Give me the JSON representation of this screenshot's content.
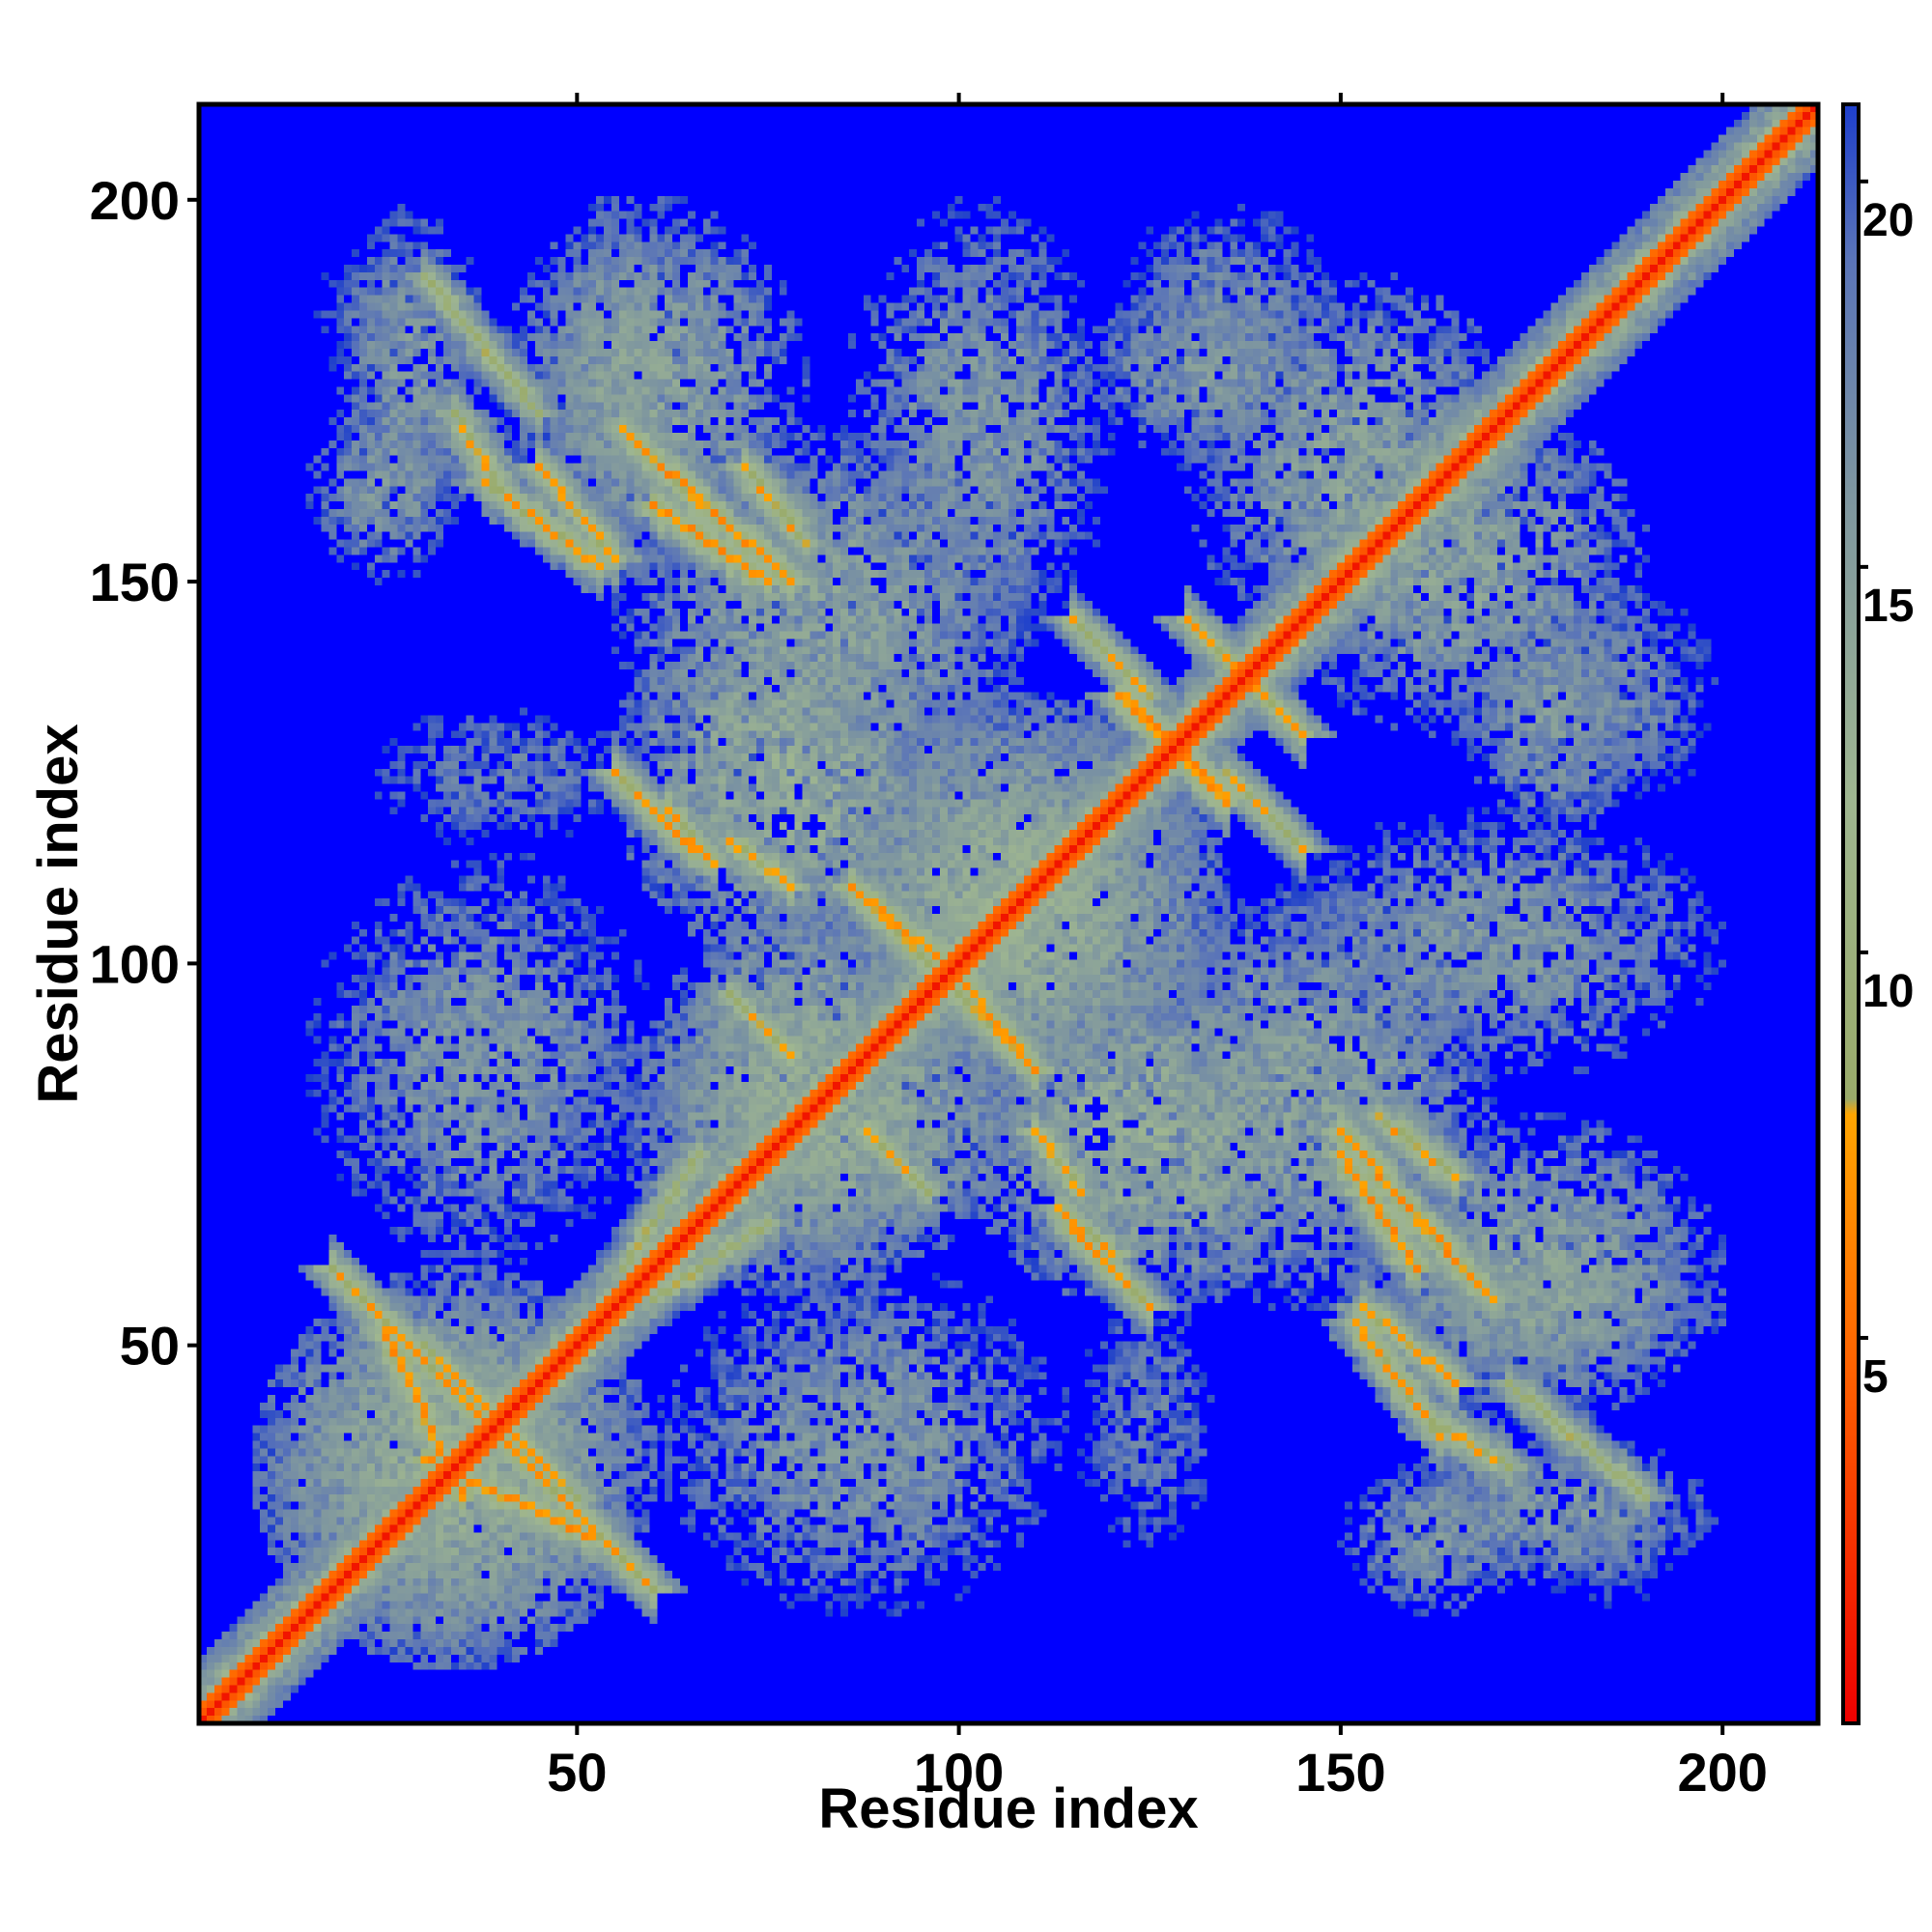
{
  "chart_data": {
    "type": "heatmap",
    "title": "",
    "xlabel": "Residue index",
    "ylabel": "Residue index",
    "n_residues": 212,
    "xlim": [
      1,
      212
    ],
    "ylim": [
      1,
      212
    ],
    "x_ticks": [
      50,
      100,
      150,
      200
    ],
    "y_ticks": [
      50,
      100,
      150,
      200
    ],
    "colorbar": {
      "ticks": [
        5,
        10,
        15,
        20
      ],
      "range": [
        0,
        21
      ],
      "stops": [
        {
          "value": 0,
          "color": "#ee0000"
        },
        {
          "value": 5,
          "color": "#ff6a00"
        },
        {
          "value": 7.9,
          "color": "#ffa500"
        },
        {
          "value": 8.1,
          "color": "#9aab6a"
        },
        {
          "value": 12,
          "color": "#9fb690"
        },
        {
          "value": 16,
          "color": "#7d95a0"
        },
        {
          "value": 19,
          "color": "#5a74b8"
        },
        {
          "value": 21,
          "color": "#1e3fcc"
        }
      ],
      "saturated_color": "#0000ff"
    },
    "value_description": "pairwise residue distance map; values above 21 shown as saturated blue",
    "diagonal_value": 1,
    "contacts": [
      {
        "i": [
          18,
          42
        ],
        "j": [
          36,
          60
        ],
        "direction": "anti",
        "value": 6.5
      },
      {
        "i": [
          30,
          52
        ],
        "j": [
          25,
          35
        ],
        "direction": "anti",
        "value": 6
      },
      {
        "i": [
          36,
          50
        ],
        "j": [
          44,
          30
        ],
        "direction": "parallel",
        "value": 7
      },
      {
        "i": [
          34,
          40
        ],
        "j": [
          162,
          172
        ],
        "direction": "anti",
        "value": 7
      },
      {
        "i": [
          45,
          55
        ],
        "j": [
          153,
          165
        ],
        "direction": "anti",
        "value": 6.5
      },
      {
        "i": [
          55,
          65
        ],
        "j": [
          115,
          125
        ],
        "direction": "anti",
        "value": 6.5
      },
      {
        "i": [
          56,
          66
        ],
        "j": [
          60,
          75
        ],
        "direction": "parallel",
        "value": 8
      },
      {
        "i": [
          58,
          78
        ],
        "j": [
          150,
          168
        ],
        "direction": "anti",
        "value": 6
      },
      {
        "i": [
          62,
          68
        ],
        "j": [
          113,
          120
        ],
        "direction": "anti",
        "value": 6.5
      },
      {
        "i": [
          70,
          78
        ],
        "j": [
          88,
          96
        ],
        "direction": "anti",
        "value": 7
      },
      {
        "i": [
          72,
          80
        ],
        "j": [
          155,
          165
        ],
        "direction": "anti",
        "value": 6.5
      },
      {
        "i": [
          86,
          98
        ],
        "j": [
          100,
          110
        ],
        "direction": "anti",
        "value": 6
      },
      {
        "i": [
          98,
          110
        ],
        "j": [
          86,
          98
        ],
        "direction": "anti",
        "value": 6.5
      },
      {
        "i": [
          70,
          78
        ],
        "j": [
          110,
          116
        ],
        "direction": "anti",
        "value": 7
      },
      {
        "i": [
          121,
          135
        ],
        "j": [
          122,
          135
        ],
        "direction": "anti",
        "value": 6
      },
      {
        "i": [
          135,
          145
        ],
        "j": [
          115,
          125
        ],
        "direction": "anti",
        "value": 7
      },
      {
        "i": [
          135,
          145
        ],
        "j": [
          130,
          140
        ],
        "direction": "anti",
        "value": 6.5
      },
      {
        "i": [
          150,
          160
        ],
        "j": [
          60,
          75
        ],
        "direction": "anti",
        "value": 6
      },
      {
        "i": [
          160,
          170
        ],
        "j": [
          56,
          66
        ],
        "direction": "anti",
        "value": 7
      },
      {
        "i": [
          152,
          163
        ],
        "j": [
          38,
          53
        ],
        "direction": "anti",
        "value": 6.5
      },
      {
        "i": [
          172,
          190
        ],
        "j": [
          30,
          45
        ],
        "direction": "anti",
        "value": 8
      }
    ],
    "regions": [
      {
        "x": [
          8,
          60
        ],
        "y": [
          8,
          60
        ],
        "level": 12
      },
      {
        "x": [
          18,
          38
        ],
        "y": [
          155,
          200
        ],
        "level": 14
      },
      {
        "x": [
          45,
          65
        ],
        "y": [
          155,
          200
        ],
        "level": 13
      },
      {
        "x": [
          80,
          135
        ],
        "y": [
          80,
          135
        ],
        "level": 12
      },
      {
        "x": [
          115,
          150
        ],
        "y": [
          165,
          190
        ],
        "level": 14
      },
      {
        "x": [
          150,
          200
        ],
        "y": [
          40,
          80
        ],
        "level": 13
      },
      {
        "x": [
          170,
          200
        ],
        "y": [
          120,
          150
        ],
        "level": 15
      },
      {
        "x": [
          175,
          195
        ],
        "y": [
          15,
          35
        ],
        "level": 16
      },
      {
        "x": [
          150,
          175
        ],
        "y": [
          15,
          35
        ],
        "level": 14
      },
      {
        "x": [
          130,
          175
        ],
        "y": [
          140,
          190
        ],
        "level": 13
      },
      {
        "x": [
          55,
          110
        ],
        "y": [
          60,
          100
        ],
        "level": 12
      },
      {
        "x": [
          55,
          110
        ],
        "y": [
          120,
          170
        ],
        "level": 13
      },
      {
        "x": [
          100,
          150
        ],
        "y": [
          55,
          100
        ],
        "level": 12
      },
      {
        "x": [
          140,
          200
        ],
        "y": [
          85,
          120
        ],
        "level": 14
      },
      {
        "x": [
          15,
          60
        ],
        "y": [
          60,
          115
        ],
        "level": 14
      },
      {
        "x": [
          20,
          60
        ],
        "y": [
          115,
          135
        ],
        "level": 16
      },
      {
        "x": [
          115,
          125
        ],
        "y": [
          30,
          40
        ],
        "level": 17
      }
    ]
  }
}
